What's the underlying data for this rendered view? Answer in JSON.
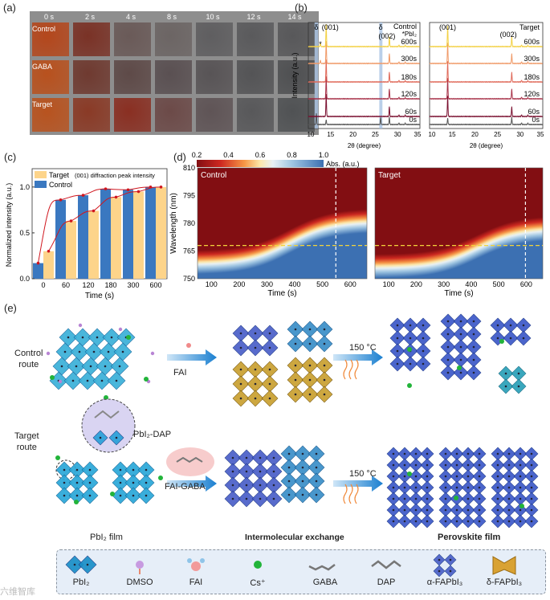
{
  "panel_labels": {
    "a": "(a)",
    "b": "(b)",
    "c": "(c)",
    "d": "(d)",
    "e": "(e)"
  },
  "panel_a": {
    "times": [
      "0 s",
      "2 s",
      "4 s",
      "8 s",
      "10 s",
      "12 s",
      "14 s"
    ],
    "rows": [
      {
        "label": "Control",
        "colors": [
          "#b4471c",
          "#7a3226",
          "#6a5a58",
          "#6c6564",
          "#5f5e60",
          "#5a5a5c",
          "#58585a"
        ]
      },
      {
        "label": "GABA",
        "colors": [
          "#b8511e",
          "#6f3a30",
          "#5e4a48",
          "#5a5052",
          "#585456",
          "#545456",
          "#4f5052"
        ]
      },
      {
        "label": "Target",
        "colors": [
          "#b8531f",
          "#8a3a26",
          "#8a2f22",
          "#6c4a48",
          "#5f5456",
          "#58585a",
          "#505254"
        ]
      }
    ]
  },
  "chart_data": [
    {
      "type": "line",
      "panel": "b-control",
      "title": "Control",
      "xlabel": "2θ (degree)",
      "ylabel": "Intensity (a.u.)",
      "xlim": [
        10,
        35
      ],
      "xticks": [
        "10",
        "15",
        "20",
        "25",
        "30",
        "35"
      ],
      "series": [
        "0s",
        "60s",
        "120s",
        "180s",
        "300s",
        "600s"
      ],
      "annotations": [
        "δ",
        "(001)",
        "δ",
        "(002)",
        "*PbI2",
        "*"
      ],
      "peaks": {
        "alpha_001": 14.0,
        "alpha_002": 28.1,
        "delta_1": 11.8,
        "delta_2": 26.2,
        "PbI2": 12.7
      }
    },
    {
      "type": "line",
      "panel": "b-target",
      "title": "Target",
      "xlabel": "2θ (degree)",
      "xlim": [
        10,
        35
      ],
      "xticks": [
        "10",
        "15",
        "20",
        "25",
        "30",
        "35"
      ],
      "series": [
        "0s",
        "60s",
        "120s",
        "180s",
        "300s",
        "600s"
      ],
      "annotations": [
        "(001)",
        "(002)"
      ]
    },
    {
      "type": "bar",
      "panel": "c",
      "xlabel": "Time (s)",
      "ylabel": "Normalized intensity (a.u.)",
      "legend_title": "(001) diffraction peak intensity",
      "categories": [
        "0",
        "60",
        "120",
        "180",
        "300",
        "600"
      ],
      "ylim": [
        0,
        1.2
      ],
      "yticks": [
        "0.0",
        "0.5",
        "1.0"
      ],
      "series": [
        {
          "name": "Control",
          "color": "#3a78c0",
          "values": [
            0.17,
            0.86,
            0.91,
            0.98,
            0.97,
            1.0
          ]
        },
        {
          "name": "Target",
          "color": "#fdd48a",
          "values": [
            0.3,
            0.63,
            0.74,
            0.89,
            0.95,
            1.0
          ]
        }
      ]
    },
    {
      "type": "heatmap",
      "panel": "d",
      "xlabel": "Time (s)",
      "ylabel": "Wavelength (nm)",
      "colorbar_label": "Abs. (a.u.)",
      "colorbar_ticks": [
        "0.2",
        "0.4",
        "0.6",
        "0.8",
        "1.0"
      ],
      "xlim": [
        50,
        660
      ],
      "ylim": [
        750,
        810
      ],
      "xticks": [
        "100",
        "200",
        "300",
        "400",
        "500",
        "600"
      ],
      "yticks": [
        "750",
        "765",
        "780",
        "795",
        "810"
      ],
      "reference_wavelength": 768,
      "maps": [
        {
          "name": "Control",
          "marker_time": 548,
          "edge_start": 758,
          "edge_end": 781,
          "edge_mid_time": 380
        },
        {
          "name": "Target",
          "marker_time": 597,
          "edge_start": 756,
          "edge_end": 777,
          "edge_mid_time": 420
        }
      ]
    }
  ],
  "panel_e": {
    "control_route": "Control\nroute",
    "target_route": "Target\nroute",
    "fai": "FAI",
    "fai_gaba": "FAI-GABA",
    "anneal": "150 °C",
    "pbi2_dap": "PbI₂-DAP",
    "pbi2_film": "PbI₂ film",
    "exchange": "Intermolecular exchange",
    "perovskite": "Perovskite film"
  },
  "legend": [
    "PbI₂",
    "DMSO",
    "FAI",
    "Cs⁺",
    "GABA",
    "DAP",
    "α-FAPbI₃",
    "δ-FAPbI₃"
  ],
  "watermark": "六维智库"
}
